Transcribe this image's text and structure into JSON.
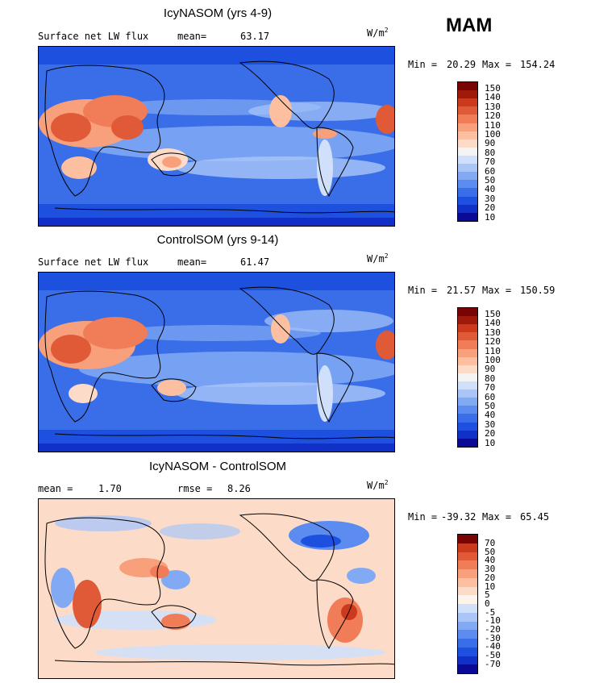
{
  "season": "MAM",
  "units": {
    "base": "W/m",
    "exp": "2"
  },
  "colors": {
    "scale_full": [
      "#0a0a96",
      "#1030c8",
      "#1e50e0",
      "#3a6ee8",
      "#5c8cf0",
      "#82aaf4",
      "#aac6f8",
      "#d0e0fa",
      "#f4f4f4",
      "#fcdcc8",
      "#fcc0a0",
      "#f8a07c",
      "#f07c58",
      "#e05a38",
      "#cc3a1e",
      "#a01a0c",
      "#780404"
    ],
    "scale_diff": [
      "#0a0a96",
      "#1030c8",
      "#1e50e0",
      "#3a6ee8",
      "#5c8cf0",
      "#82aaf4",
      "#aac6f8",
      "#d0e0fa",
      "#fff4ec",
      "#fcdcc8",
      "#fcc0a0",
      "#f8a07c",
      "#f07c58",
      "#e05a38",
      "#cc3a1e",
      "#780404"
    ]
  },
  "chart_data": [
    {
      "type": "heatmap",
      "title": "IcyNASOM (yrs 4-9)",
      "variable": "Surface net LW flux",
      "stat1_label": "mean=",
      "stat1_value": "63.17",
      "min_label": "Min =",
      "min": "20.29",
      "max_label": "Max =",
      "max": "154.24",
      "colorbar_ticks": [
        "150",
        "140",
        "130",
        "120",
        "110",
        "100",
        "90",
        "80",
        "70",
        "60",
        "50",
        "40",
        "30",
        "20",
        "10"
      ]
    },
    {
      "type": "heatmap",
      "title": "ControlSOM (yrs 9-14)",
      "variable": "Surface net LW flux",
      "stat1_label": "mean=",
      "stat1_value": "61.47",
      "min_label": "Min =",
      "min": "21.57",
      "max_label": "Max =",
      "max": "150.59",
      "colorbar_ticks": [
        "150",
        "140",
        "130",
        "120",
        "110",
        "100",
        "90",
        "80",
        "70",
        "60",
        "50",
        "40",
        "30",
        "20",
        "10"
      ]
    },
    {
      "type": "heatmap",
      "title": "IcyNASOM - ControlSOM",
      "stat1_label": "mean =",
      "stat1_value": "1.70",
      "stat2_label": "rmse =",
      "stat2_value": "8.26",
      "min_label": "Min =",
      "min": "-39.32",
      "max_label": "Max =",
      "max": "65.45",
      "colorbar_ticks": [
        "70",
        "50",
        "40",
        "30",
        "20",
        "10",
        "5",
        "0",
        "-5",
        "-10",
        "-20",
        "-30",
        "-40",
        "-50",
        "-70"
      ]
    }
  ]
}
